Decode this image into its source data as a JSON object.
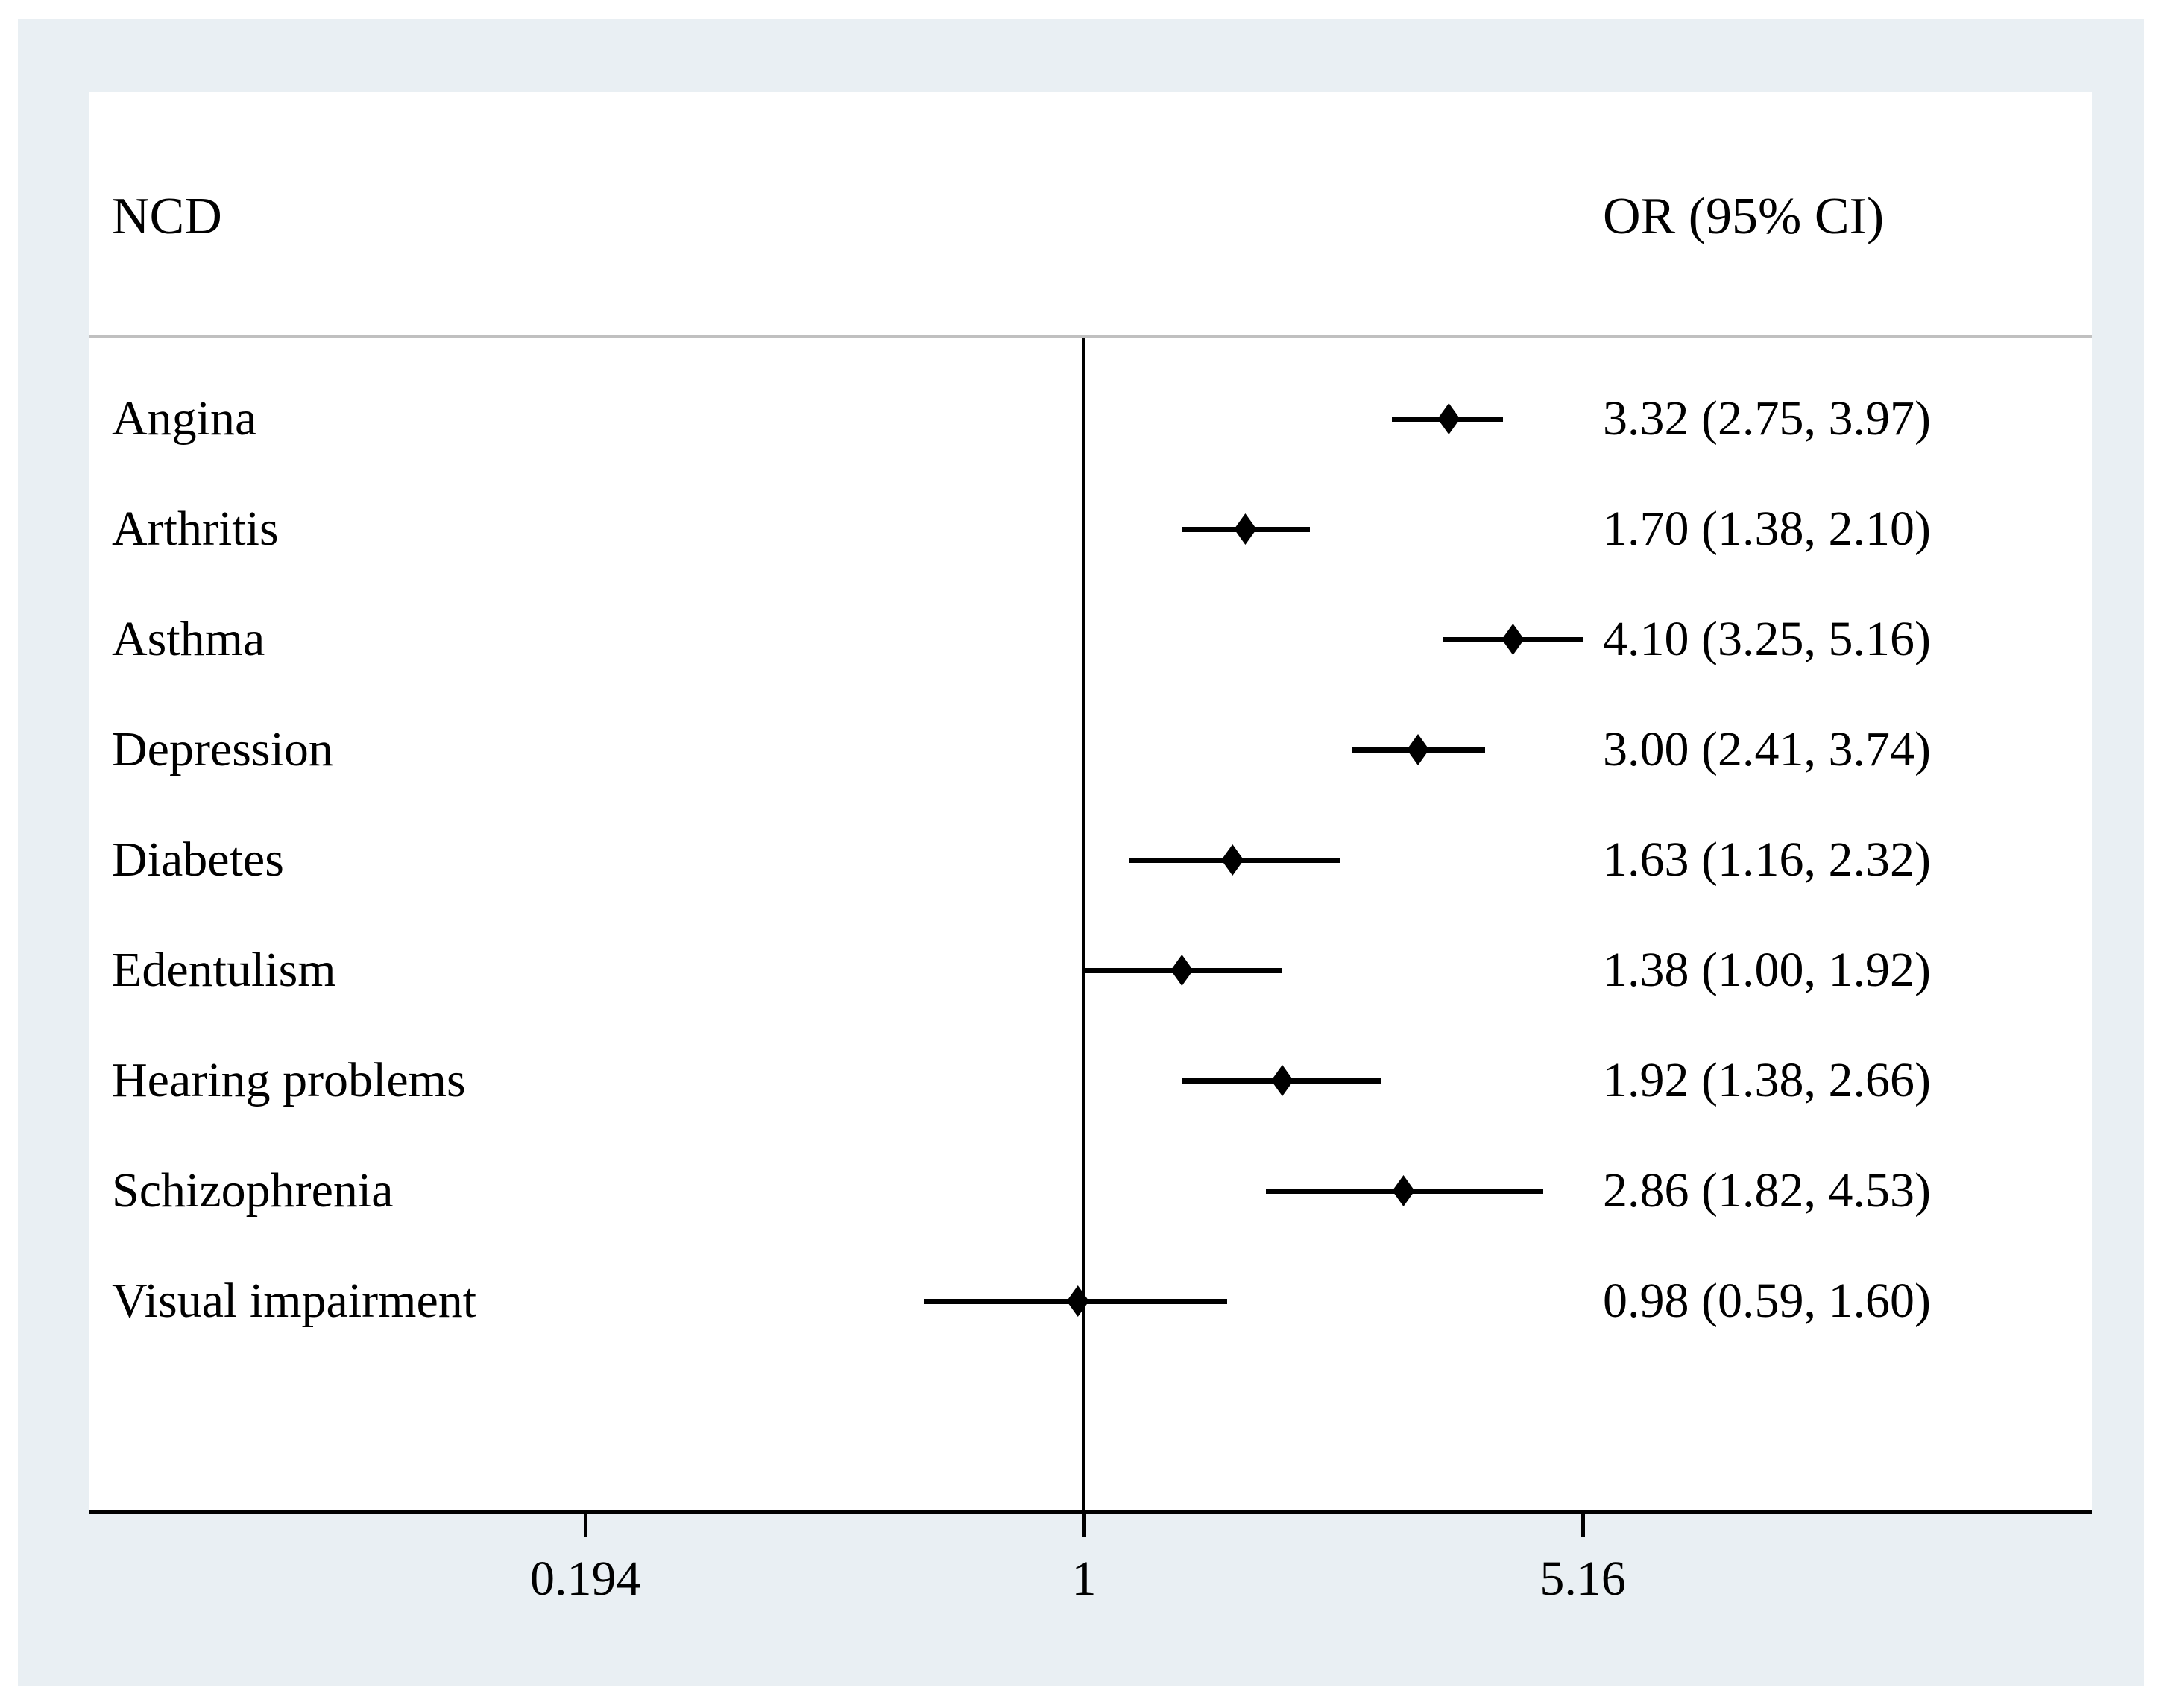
{
  "chart_data": {
    "type": "scatter",
    "variant": "forest_plot",
    "left_column_header": "NCD",
    "right_column_header": "OR (95% CI)",
    "x_scale": "log",
    "x_ticks": [
      0.194,
      1,
      5.16
    ],
    "x_tick_labels": [
      "0.194",
      "1",
      "5.16"
    ],
    "reference_line_x": 1,
    "x_range": [
      0.12,
      8.5
    ],
    "grid": false,
    "legend": "none",
    "rows": [
      {
        "label": "Angina",
        "or": 3.32,
        "ci_low": 2.75,
        "ci_high": 3.97,
        "display": "3.32 (2.75, 3.97)"
      },
      {
        "label": "Arthritis",
        "or": 1.7,
        "ci_low": 1.38,
        "ci_high": 2.1,
        "display": "1.70 (1.38, 2.10)"
      },
      {
        "label": "Asthma",
        "or": 4.1,
        "ci_low": 3.25,
        "ci_high": 5.16,
        "display": "4.10 (3.25, 5.16)"
      },
      {
        "label": "Depression",
        "or": 3.0,
        "ci_low": 2.41,
        "ci_high": 3.74,
        "display": "3.00 (2.41, 3.74)"
      },
      {
        "label": "Diabetes",
        "or": 1.63,
        "ci_low": 1.16,
        "ci_high": 2.32,
        "display": "1.63 (1.16, 2.32)"
      },
      {
        "label": "Edentulism",
        "or": 1.38,
        "ci_low": 1.0,
        "ci_high": 1.92,
        "display": "1.38 (1.00, 1.92)"
      },
      {
        "label": "Hearing problems",
        "or": 1.92,
        "ci_low": 1.38,
        "ci_high": 2.66,
        "display": "1.92 (1.38, 2.66)"
      },
      {
        "label": "Schizophrenia",
        "or": 2.86,
        "ci_low": 1.82,
        "ci_high": 4.53,
        "display": "2.86 (1.82, 4.53)"
      },
      {
        "label": "Visual impairment",
        "or": 0.98,
        "ci_low": 0.59,
        "ci_high": 1.6,
        "display": "0.98 (0.59, 1.60)"
      }
    ],
    "colors": {
      "marker": "#000000",
      "ci_line": "#000000",
      "reference_line": "#000000",
      "axis_line": "#000000",
      "header_separator": "#c0c0c0",
      "figure_background": "#e9eff3",
      "panel_background": "#ffffff",
      "text": "#000000"
    }
  }
}
